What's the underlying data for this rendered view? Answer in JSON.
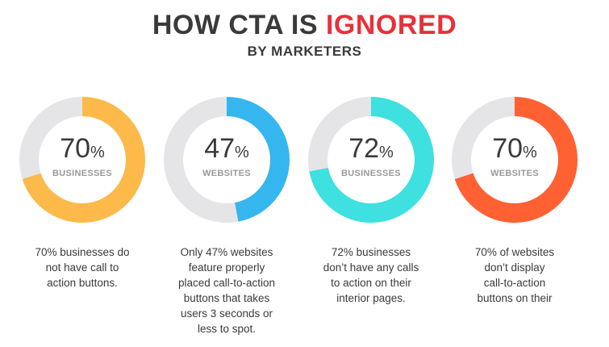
{
  "header": {
    "title_main": "HOW CTA IS ",
    "title_accent": "IGNORED",
    "subtitle": "BY MARKETERS"
  },
  "colors": {
    "track": "#e5e5e8",
    "accent_title": "#e8303a"
  },
  "chart_data": [
    {
      "type": "pie",
      "value": 70,
      "remainder": 30,
      "value_text": "70",
      "unit_symbol": "%",
      "label": "BUSINESSES",
      "color": "#fdb94a",
      "description": [
        "70% businesses do",
        "not have call to",
        "action buttons."
      ]
    },
    {
      "type": "pie",
      "value": 47,
      "remainder": 53,
      "value_text": "47",
      "unit_symbol": "%",
      "label": "WEBSITES",
      "color": "#35b6ee",
      "description": [
        "Only 47% websites",
        "feature properly",
        "placed call-to-action",
        "buttons that takes",
        "users 3 seconds or",
        "less to spot."
      ]
    },
    {
      "type": "pie",
      "value": 72,
      "remainder": 28,
      "value_text": "72",
      "unit_symbol": "%",
      "label": "BUSINESSES",
      "color": "#3ee0e0",
      "description": [
        "72% businesses",
        "don’t have any calls",
        "to action on their",
        "interior pages."
      ]
    },
    {
      "type": "pie",
      "value": 70,
      "remainder": 30,
      "value_text": "70",
      "unit_symbol": "%",
      "label": "WEBSITES",
      "color": "#ff6133",
      "description": [
        "70% of websites",
        "don’t display",
        "call-to-action",
        "buttons on their"
      ]
    }
  ]
}
